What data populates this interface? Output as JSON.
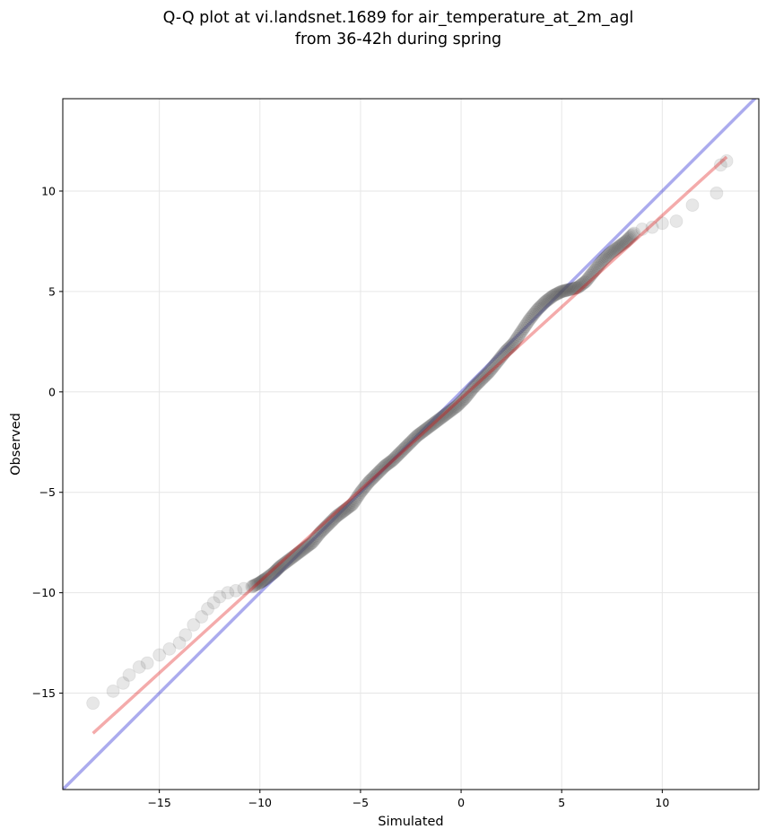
{
  "chart_data": {
    "type": "scatter",
    "title": "Q-Q plot at vi.landsnet.1689 for air_temperature_at_2m_agl",
    "subtitle": "from 36-42h during spring",
    "xlabel": "Simulated",
    "ylabel": "Observed",
    "xlim": [
      -19.8,
      14.8
    ],
    "ylim": [
      -19.8,
      14.6
    ],
    "xticks": [
      -15,
      -10,
      -5,
      0,
      5,
      10
    ],
    "yticks": [
      -15,
      -10,
      -5,
      0,
      5,
      10
    ],
    "grid": true,
    "legend": "none",
    "colors": {
      "points": "#555555",
      "identity_line": "#0000cc",
      "fit_line": "#dd0000",
      "grid": "#e6e6e6"
    },
    "identity_line": {
      "slope": 1,
      "intercept": 0
    },
    "fit_line": {
      "x": [
        -18.3,
        13.2
      ],
      "y": [
        -17.0,
        11.7
      ]
    },
    "quantiles": {
      "x": [
        -18.3,
        -17.3,
        -16.8,
        -16.5,
        -16.0,
        -15.6,
        -15.0,
        -14.5,
        -14.0,
        -13.7,
        -13.3,
        -12.9,
        -12.6,
        -12.3,
        -12.0,
        -11.6,
        -11.2,
        -10.8,
        -10.4,
        -10.0,
        -9.7,
        -9.3,
        -9.0,
        -8.6,
        -8.2,
        -7.8,
        -7.4,
        -7.0,
        -6.6,
        -6.2,
        -5.8,
        -5.4,
        -5.0,
        -4.6,
        -4.2,
        -3.8,
        -3.4,
        -3.0,
        -2.6,
        -2.2,
        -1.8,
        -1.4,
        -1.0,
        -0.6,
        -0.2,
        0.2,
        0.6,
        1.0,
        1.4,
        1.8,
        2.2,
        2.6,
        3.0,
        3.4,
        3.8,
        4.2,
        4.6,
        5.0,
        5.4,
        5.8,
        6.2,
        6.6,
        7.0,
        7.4,
        7.8,
        8.2,
        8.6,
        9.0,
        9.5,
        10.0,
        10.7,
        11.5,
        12.7,
        12.9,
        13.2
      ],
      "y": [
        -15.5,
        -14.9,
        -14.5,
        -14.1,
        -13.7,
        -13.5,
        -13.1,
        -12.8,
        -12.5,
        -12.1,
        -11.6,
        -11.2,
        -10.8,
        -10.5,
        -10.2,
        -10.0,
        -9.9,
        -9.8,
        -9.7,
        -9.5,
        -9.3,
        -9.0,
        -8.7,
        -8.4,
        -8.1,
        -7.8,
        -7.5,
        -7.0,
        -6.6,
        -6.2,
        -5.9,
        -5.6,
        -5.0,
        -4.5,
        -4.1,
        -3.7,
        -3.4,
        -3.0,
        -2.6,
        -2.2,
        -1.9,
        -1.6,
        -1.3,
        -1.0,
        -0.7,
        -0.3,
        0.2,
        0.6,
        1.0,
        1.5,
        2.0,
        2.4,
        3.0,
        3.6,
        4.1,
        4.5,
        4.8,
        5.0,
        5.1,
        5.2,
        5.5,
        6.0,
        6.5,
        6.9,
        7.2,
        7.5,
        7.9,
        8.1,
        8.2,
        8.4,
        8.5,
        9.3,
        9.9,
        11.3,
        11.5
      ]
    }
  }
}
